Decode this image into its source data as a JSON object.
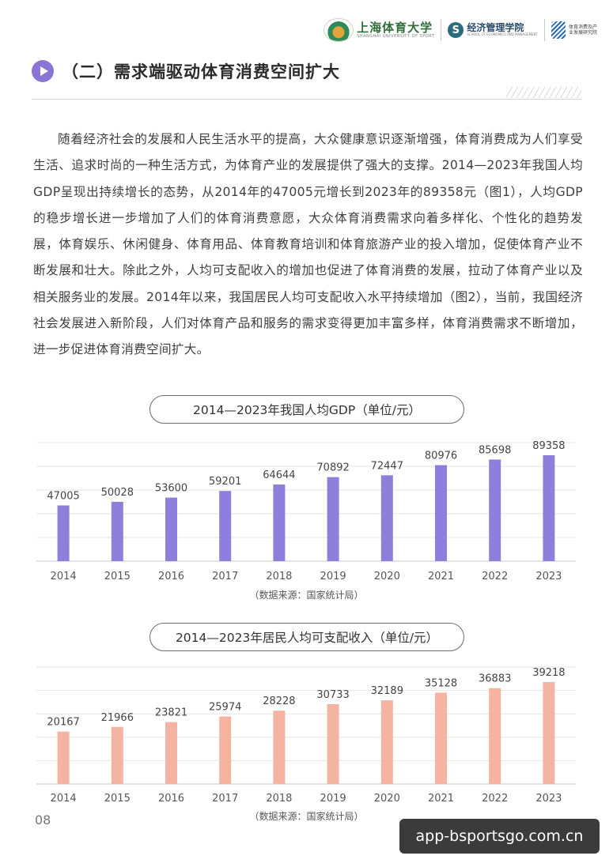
{
  "header": {
    "university_cn": "上海体育大学",
    "university_en": "SHANGHAI UNIVERSITY OF SPORT",
    "school_cn": "经济管理学院",
    "school_en": "SCHOOL OF ECONOMICS AND MANAGEMENT",
    "institute_cn": "体育消费及产业发展研究院"
  },
  "section": {
    "title": "（二）需求端驱动体育消费空间扩大",
    "icon": "play-icon"
  },
  "body": {
    "paragraph": "随着经济社会的发展和人民生活水平的提高，大众健康意识逐渐增强，体育消费成为人们享受生活、追求时尚的一种生活方式，为体育产业的发展提供了强大的支撑。2014—2023年我国人均GDP呈现出持续增长的态势，从2014年的47005元增长到2023年的89358元（图1），人均GDP的稳步增长进一步增加了人们的体育消费意愿，大众体育消费需求向着多样化、个性化的趋势发展，体育娱乐、休闲健身、体育用品、体育教育培训和体育旅游产业的投入增加，促使体育产业不断发展和壮大。除此之外，人均可支配收入的增加也促进了体育消费的发展，拉动了体育产业以及相关服务业的发展。2014年以来，我国居民人均可支配收入水平持续增加（图2），当前，我国经济社会发展进入新阶段，人们对体育产品和服务的需求变得更加丰富多样，体育消费需求不断增加，进一步促进体育消费空间扩大。"
  },
  "chart_data": [
    {
      "type": "bar",
      "title": "2014—2023年我国人均GDP（单位/元）",
      "categories": [
        "2014",
        "2015",
        "2016",
        "2017",
        "2018",
        "2019",
        "2020",
        "2021",
        "2022",
        "2023"
      ],
      "values": [
        47005,
        50028,
        53600,
        59201,
        64644,
        70892,
        72447,
        80976,
        85698,
        89358
      ],
      "ylim": [
        0,
        100000
      ],
      "grid": true,
      "color": "#8f7fdc",
      "source": "（数据来源：国家统计局）"
    },
    {
      "type": "bar",
      "title": "2014—2023年居民人均可支配收入（单位/元）",
      "categories": [
        "2014",
        "2015",
        "2016",
        "2017",
        "2018",
        "2019",
        "2020",
        "2021",
        "2022",
        "2023"
      ],
      "values": [
        20167,
        21966,
        23821,
        25974,
        28228,
        30733,
        32189,
        35128,
        36883,
        39218
      ],
      "ylim": [
        0,
        45000
      ],
      "grid": true,
      "color": "#f5b4a1",
      "source": "（数据来源：国家统计局）"
    }
  ],
  "footer": {
    "page_number": "08",
    "watermark": "app-bsportsgo.com.cn"
  }
}
